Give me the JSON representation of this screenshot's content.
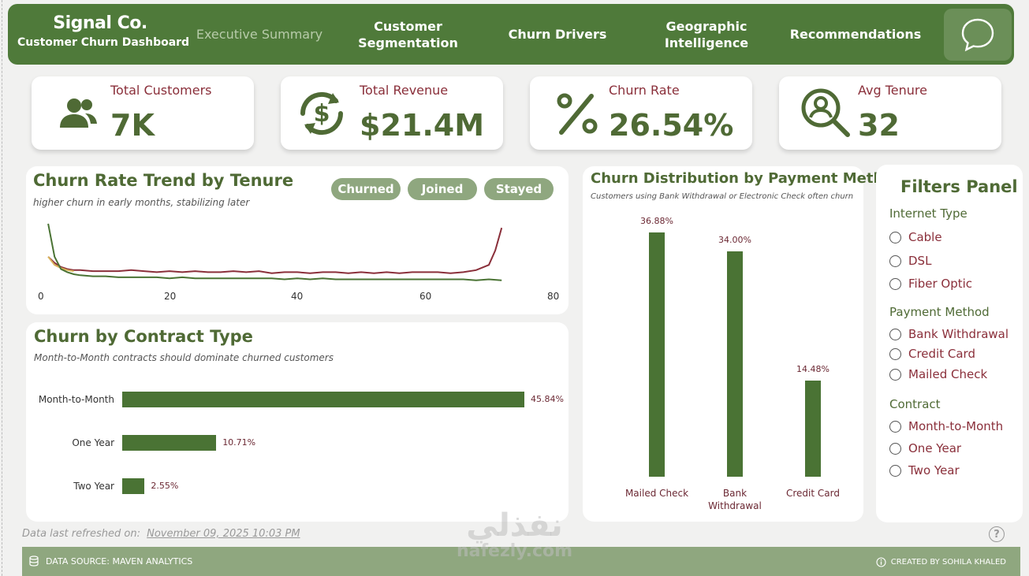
{
  "header": {
    "brand_name": "Signal Co.",
    "brand_sub": "Customer Churn Dashboard",
    "nav": [
      {
        "label": "Executive Summary",
        "active": true
      },
      {
        "label": "Customer Segmentation"
      },
      {
        "label": "Churn Drivers"
      },
      {
        "label": "Geographic Intelligence"
      },
      {
        "label": "Recommendations"
      }
    ],
    "chat_icon": "chat-bubble-icon"
  },
  "kpis": [
    {
      "label": "Total Customers",
      "value": "7K",
      "icon": "users-icon"
    },
    {
      "label": "Total Revenue",
      "value": "$21.4M",
      "icon": "dollar-cycle-icon"
    },
    {
      "label": "Churn Rate",
      "value": "26.54%",
      "icon": "percent-icon"
    },
    {
      "label": "Avg Tenure",
      "value": "32",
      "icon": "user-search-icon"
    }
  ],
  "trend": {
    "title": "Churn Rate Trend by Tenure",
    "subtitle": "higher churn in early months, stabilizing later",
    "legend": [
      "Churned",
      "Joined",
      "Stayed"
    ],
    "xticks": [
      "0",
      "20",
      "40",
      "60",
      "80"
    ]
  },
  "contract": {
    "title": "Churn by Contract Type",
    "subtitle": "Month-to-Month contracts should dominate churned customers"
  },
  "payment": {
    "title": "Churn Distribution by Payment Method",
    "subtitle": "Customers using Bank Withdrawal or Electronic Check often churn hi..."
  },
  "filters": {
    "title": "Filters Panel",
    "groups": [
      {
        "label": "Internet Type",
        "options": [
          "Cable",
          "DSL",
          "Fiber Optic"
        ]
      },
      {
        "label": "Payment Method",
        "options": [
          "Bank Withdrawal",
          "Credit Card",
          "Mailed Check"
        ]
      },
      {
        "label": "Contract",
        "options": [
          "Month-to-Month",
          "One Year",
          "Two Year"
        ]
      }
    ]
  },
  "footer": {
    "refresh_label": "Data last refreshed on:",
    "refresh_date": "November 09, 2025 10:03 PM",
    "source": "DATA SOURCE: MAVEN ANALYTICS",
    "credit": "CREATED BY SOHILA KHALED",
    "watermark_ar": "نفذلي",
    "watermark_en": "nafezly.com"
  },
  "colors": {
    "primary": "#4f7a3a",
    "accent": "#8a2f3a",
    "pill": "#8fa77f",
    "bar": "#4a7334"
  },
  "chart_data": [
    {
      "type": "line",
      "title": "Churn Rate Trend by Tenure",
      "xlim": [
        0,
        80
      ],
      "series": [
        {
          "name": "Churned",
          "color": "#8a2f3a",
          "x": [
            1,
            2,
            3,
            4,
            5,
            6,
            8,
            10,
            12,
            14,
            16,
            18,
            20,
            22,
            24,
            26,
            28,
            30,
            32,
            34,
            36,
            38,
            40,
            42,
            44,
            46,
            48,
            50,
            52,
            54,
            56,
            58,
            60,
            62,
            64,
            66,
            68,
            70,
            71,
            72
          ],
          "values": [
            0.3,
            0.24,
            0.2,
            0.18,
            0.17,
            0.17,
            0.16,
            0.16,
            0.16,
            0.17,
            0.16,
            0.15,
            0.16,
            0.15,
            0.16,
            0.15,
            0.15,
            0.16,
            0.15,
            0.16,
            0.14,
            0.15,
            0.15,
            0.14,
            0.15,
            0.15,
            0.14,
            0.15,
            0.14,
            0.15,
            0.14,
            0.15,
            0.15,
            0.15,
            0.14,
            0.15,
            0.17,
            0.22,
            0.36,
            0.58
          ]
        },
        {
          "name": "Joined",
          "color": "#d9b35a",
          "x": [
            1,
            2,
            3,
            4,
            5
          ],
          "values": [
            0.3,
            0.22,
            0.19,
            0.17,
            0.16
          ]
        },
        {
          "name": "Stayed",
          "color": "#4a7334",
          "x": [
            1,
            2,
            3,
            4,
            5,
            6,
            8,
            10,
            12,
            14,
            16,
            18,
            20,
            22,
            24,
            26,
            28,
            30,
            32,
            34,
            36,
            38,
            40,
            42,
            44,
            46,
            48,
            50,
            52,
            54,
            56,
            58,
            60,
            62,
            64,
            66,
            68,
            70,
            72
          ],
          "values": [
            0.62,
            0.3,
            0.18,
            0.15,
            0.13,
            0.12,
            0.11,
            0.11,
            0.1,
            0.1,
            0.1,
            0.1,
            0.09,
            0.1,
            0.09,
            0.09,
            0.09,
            0.09,
            0.09,
            0.09,
            0.09,
            0.08,
            0.09,
            0.08,
            0.09,
            0.08,
            0.08,
            0.08,
            0.08,
            0.08,
            0.08,
            0.08,
            0.08,
            0.08,
            0.08,
            0.08,
            0.07,
            0.08,
            0.07
          ]
        }
      ]
    },
    {
      "type": "bar",
      "orientation": "horizontal",
      "title": "Churn by Contract Type",
      "categories": [
        "Month-to-Month",
        "One Year",
        "Two Year"
      ],
      "values": [
        45.84,
        10.71,
        2.55
      ],
      "value_labels": [
        "45.84%",
        "10.71%",
        "2.55%"
      ]
    },
    {
      "type": "bar",
      "title": "Churn Distribution by Payment Method",
      "categories": [
        [
          "Mailed Check"
        ],
        [
          "Bank",
          "Withdrawal"
        ],
        [
          "Credit Card"
        ]
      ],
      "values": [
        36.88,
        34.0,
        14.48
      ],
      "value_labels": [
        "36.88%",
        "34.00%",
        "14.48%"
      ]
    }
  ]
}
